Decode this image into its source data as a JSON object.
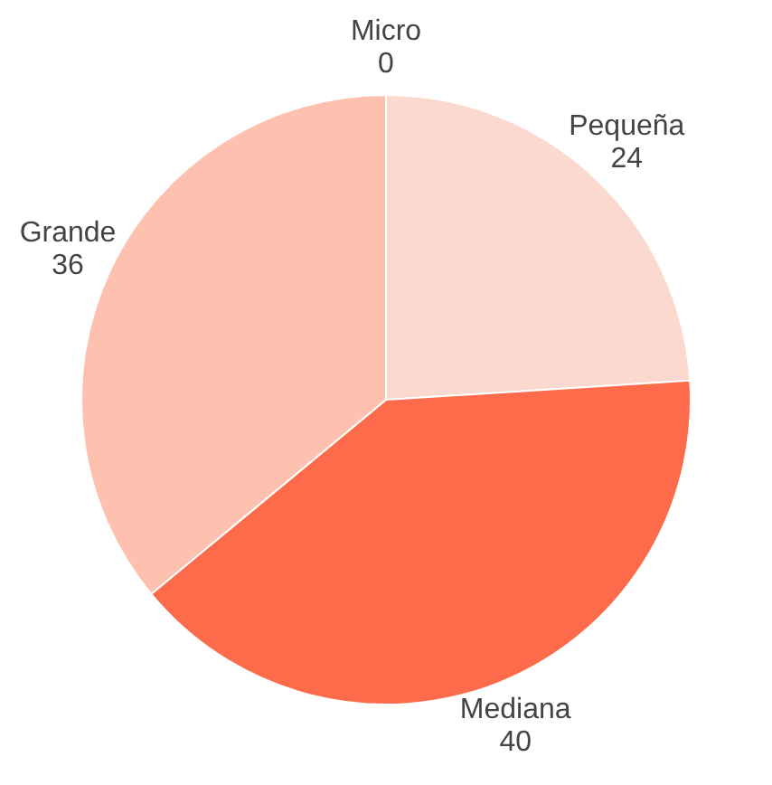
{
  "chart_data": {
    "type": "pie",
    "categories": [
      "Micro",
      "Pequeña",
      "Mediana",
      "Grande"
    ],
    "values": [
      0,
      24,
      40,
      36
    ],
    "colors": [
      "#fe6b4b",
      "#fcd9ce",
      "#fe6b4b",
      "#ffc1af"
    ],
    "value_labels": [
      "0",
      "24",
      "40",
      "36"
    ],
    "legend": false
  }
}
